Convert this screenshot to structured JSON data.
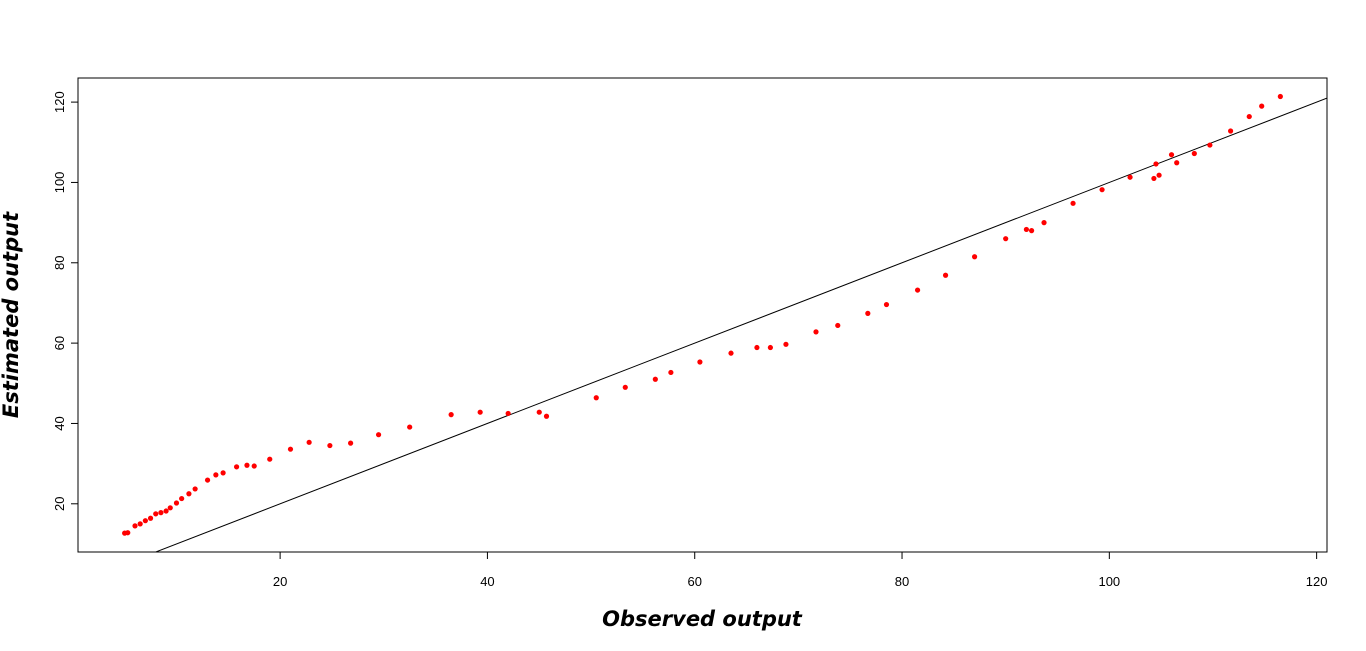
{
  "chart_data": {
    "type": "scatter",
    "title": "",
    "xlabel": "Observed output",
    "ylabel": "Estimated output",
    "xlim": [
      0.5,
      121
    ],
    "ylim": [
      8,
      126
    ],
    "xticks": [
      20,
      40,
      60,
      80,
      100,
      120
    ],
    "yticks": [
      20,
      40,
      60,
      80,
      100,
      120
    ],
    "grid": false,
    "reference_line": {
      "label": "y = x",
      "color": "#000000"
    },
    "points_color": "#ff0000",
    "points": [
      [
        5.0,
        12.7
      ],
      [
        5.3,
        12.8
      ],
      [
        6.0,
        14.5
      ],
      [
        6.5,
        15.0
      ],
      [
        7.0,
        15.8
      ],
      [
        7.5,
        16.4
      ],
      [
        8.0,
        17.5
      ],
      [
        8.5,
        17.8
      ],
      [
        9.0,
        18.2
      ],
      [
        9.4,
        19.0
      ],
      [
        10.0,
        20.2
      ],
      [
        10.5,
        21.3
      ],
      [
        11.2,
        22.5
      ],
      [
        11.8,
        23.7
      ],
      [
        13.0,
        25.9
      ],
      [
        13.8,
        27.2
      ],
      [
        14.5,
        27.7
      ],
      [
        15.8,
        29.2
      ],
      [
        16.8,
        29.6
      ],
      [
        17.5,
        29.4
      ],
      [
        19.0,
        31.1
      ],
      [
        21.0,
        33.6
      ],
      [
        22.8,
        35.3
      ],
      [
        24.8,
        34.5
      ],
      [
        26.8,
        35.1
      ],
      [
        29.5,
        37.2
      ],
      [
        32.5,
        39.1
      ],
      [
        36.5,
        42.2
      ],
      [
        39.3,
        42.8
      ],
      [
        42.0,
        42.5
      ],
      [
        45.0,
        42.8
      ],
      [
        45.7,
        41.8
      ],
      [
        50.5,
        46.4
      ],
      [
        53.3,
        49.0
      ],
      [
        56.2,
        51.0
      ],
      [
        57.7,
        52.7
      ],
      [
        60.5,
        55.3
      ],
      [
        63.5,
        57.5
      ],
      [
        66.0,
        58.9
      ],
      [
        67.3,
        58.9
      ],
      [
        68.8,
        59.7
      ],
      [
        71.7,
        62.8
      ],
      [
        73.8,
        64.4
      ],
      [
        76.7,
        67.4
      ],
      [
        78.5,
        69.6
      ],
      [
        81.5,
        73.2
      ],
      [
        84.2,
        76.9
      ],
      [
        87.0,
        81.5
      ],
      [
        90.0,
        86.0
      ],
      [
        92.0,
        88.3
      ],
      [
        92.5,
        88.0
      ],
      [
        93.7,
        90.0
      ],
      [
        96.5,
        94.8
      ],
      [
        99.3,
        98.2
      ],
      [
        102.0,
        101.3
      ],
      [
        104.3,
        101.0
      ],
      [
        104.8,
        101.8
      ],
      [
        104.5,
        104.6
      ],
      [
        106.0,
        106.9
      ],
      [
        106.5,
        104.9
      ],
      [
        108.2,
        107.2
      ],
      [
        109.7,
        109.3
      ],
      [
        111.7,
        112.8
      ],
      [
        113.5,
        116.4
      ],
      [
        114.7,
        119.0
      ],
      [
        116.5,
        121.4
      ]
    ]
  }
}
